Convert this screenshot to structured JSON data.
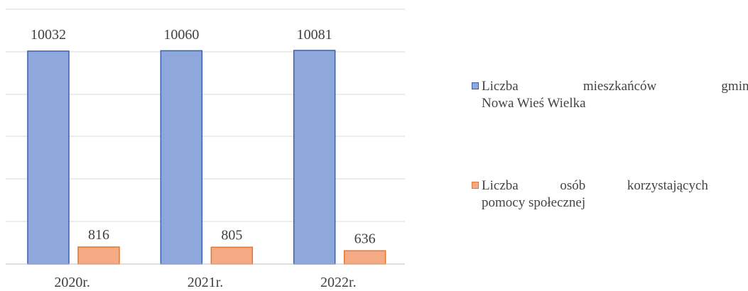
{
  "chart_data": {
    "type": "bar",
    "categories": [
      "2020r.",
      "2021r.",
      "2022r."
    ],
    "series": [
      {
        "name": "Liczba mieszkańców gminy Nowa Wieś Wielka",
        "values": [
          10032,
          10060,
          10081
        ],
        "value_labels": [
          "10032",
          "10060",
          "10081"
        ],
        "color": "#8fa8dc",
        "border": "#3a5fb0"
      },
      {
        "name": "Liczba osób korzystających z pomocy społecznej",
        "values": [
          816,
          805,
          636
        ],
        "value_labels": [
          "816",
          "805",
          "636"
        ],
        "color": "#f4aa85",
        "border": "#e2772e"
      }
    ],
    "legend": {
      "position": "right",
      "items": [
        {
          "line1": "Liczba mieszkańców gminy",
          "line2": "Nowa Wieś Wielka"
        },
        {
          "line1": "Liczba osób korzystających z",
          "line2": "pomocy społecznej"
        }
      ]
    },
    "grid": true,
    "note": "y-axis without tick labels; bars appear broken-scale (large values truncated)"
  }
}
